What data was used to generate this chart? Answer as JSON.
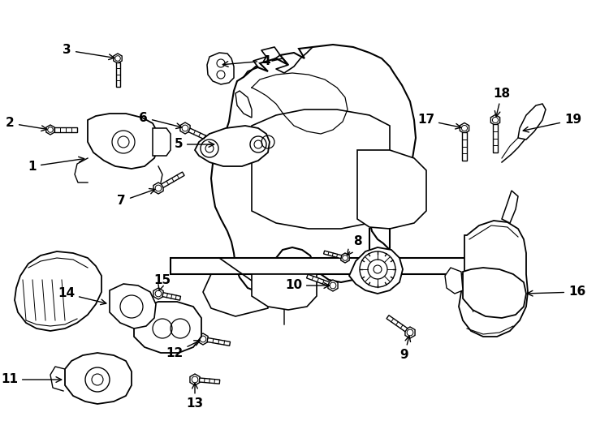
{
  "background": "#ffffff",
  "line_color": "#000000",
  "figsize": [
    7.34,
    5.4
  ],
  "dpi": 100
}
